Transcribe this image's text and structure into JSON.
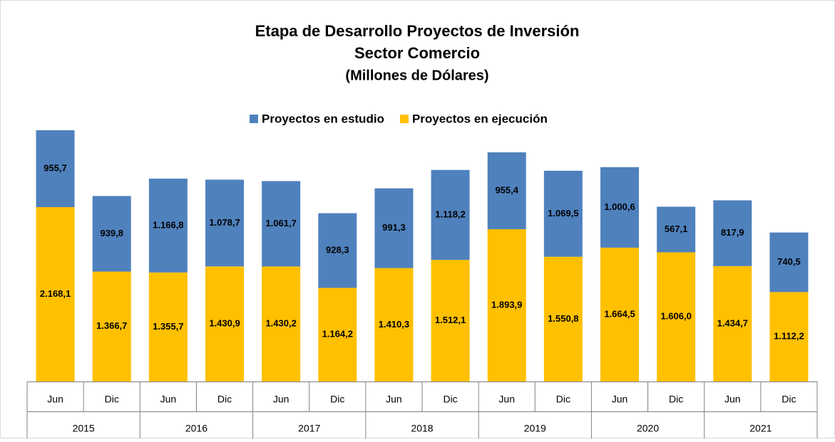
{
  "chart_data": {
    "type": "stacked_bar",
    "title": "Etapa de Desarrollo Proyectos de Inversión",
    "subtitle": "Sector Comercio",
    "unit_label": "(Millones de Dólares)",
    "categories": [
      "Jun",
      "Dic",
      "Jun",
      "Dic",
      "Jun",
      "Dic",
      "Jun",
      "Dic",
      "Jun",
      "Dic",
      "Jun",
      "Dic",
      "Jun",
      "Dic"
    ],
    "years": [
      "2015",
      "2016",
      "2017",
      "2018",
      "2019",
      "2020",
      "2021"
    ],
    "ylim": [
      0,
      3500
    ],
    "series": [
      {
        "name": "Proyectos en estudio",
        "color": "#4f81bd",
        "values": [
          955.7,
          939.8,
          1166.8,
          1078.7,
          1061.7,
          928.3,
          991.3,
          1118.2,
          955.4,
          1069.5,
          1000.6,
          567.1,
          817.9,
          740.5
        ],
        "value_labels": [
          "955,7",
          "939,8",
          "1.166,8",
          "1.078,7",
          "1.061,7",
          "928,3",
          "991,3",
          "1.118,2",
          "955,4",
          "1.069,5",
          "1.000,6",
          "567,1",
          "817,9",
          "740,5"
        ]
      },
      {
        "name": "Proyectos en ejecución",
        "color": "#ffc000",
        "values": [
          2168.1,
          1366.7,
          1355.7,
          1430.9,
          1430.2,
          1164.2,
          1410.3,
          1512.1,
          1893.9,
          1550.8,
          1664.5,
          1606.0,
          1434.7,
          1112.2
        ],
        "value_labels": [
          "2.168,1",
          "1.366,7",
          "1.355,7",
          "1.430,9",
          "1.430,2",
          "1.164,2",
          "1.410,3",
          "1.512,1",
          "1.893,9",
          "1.550,8",
          "1.664,5",
          "1.606,0",
          "1.434,7",
          "1.112,2"
        ]
      }
    ],
    "legend": "top"
  }
}
